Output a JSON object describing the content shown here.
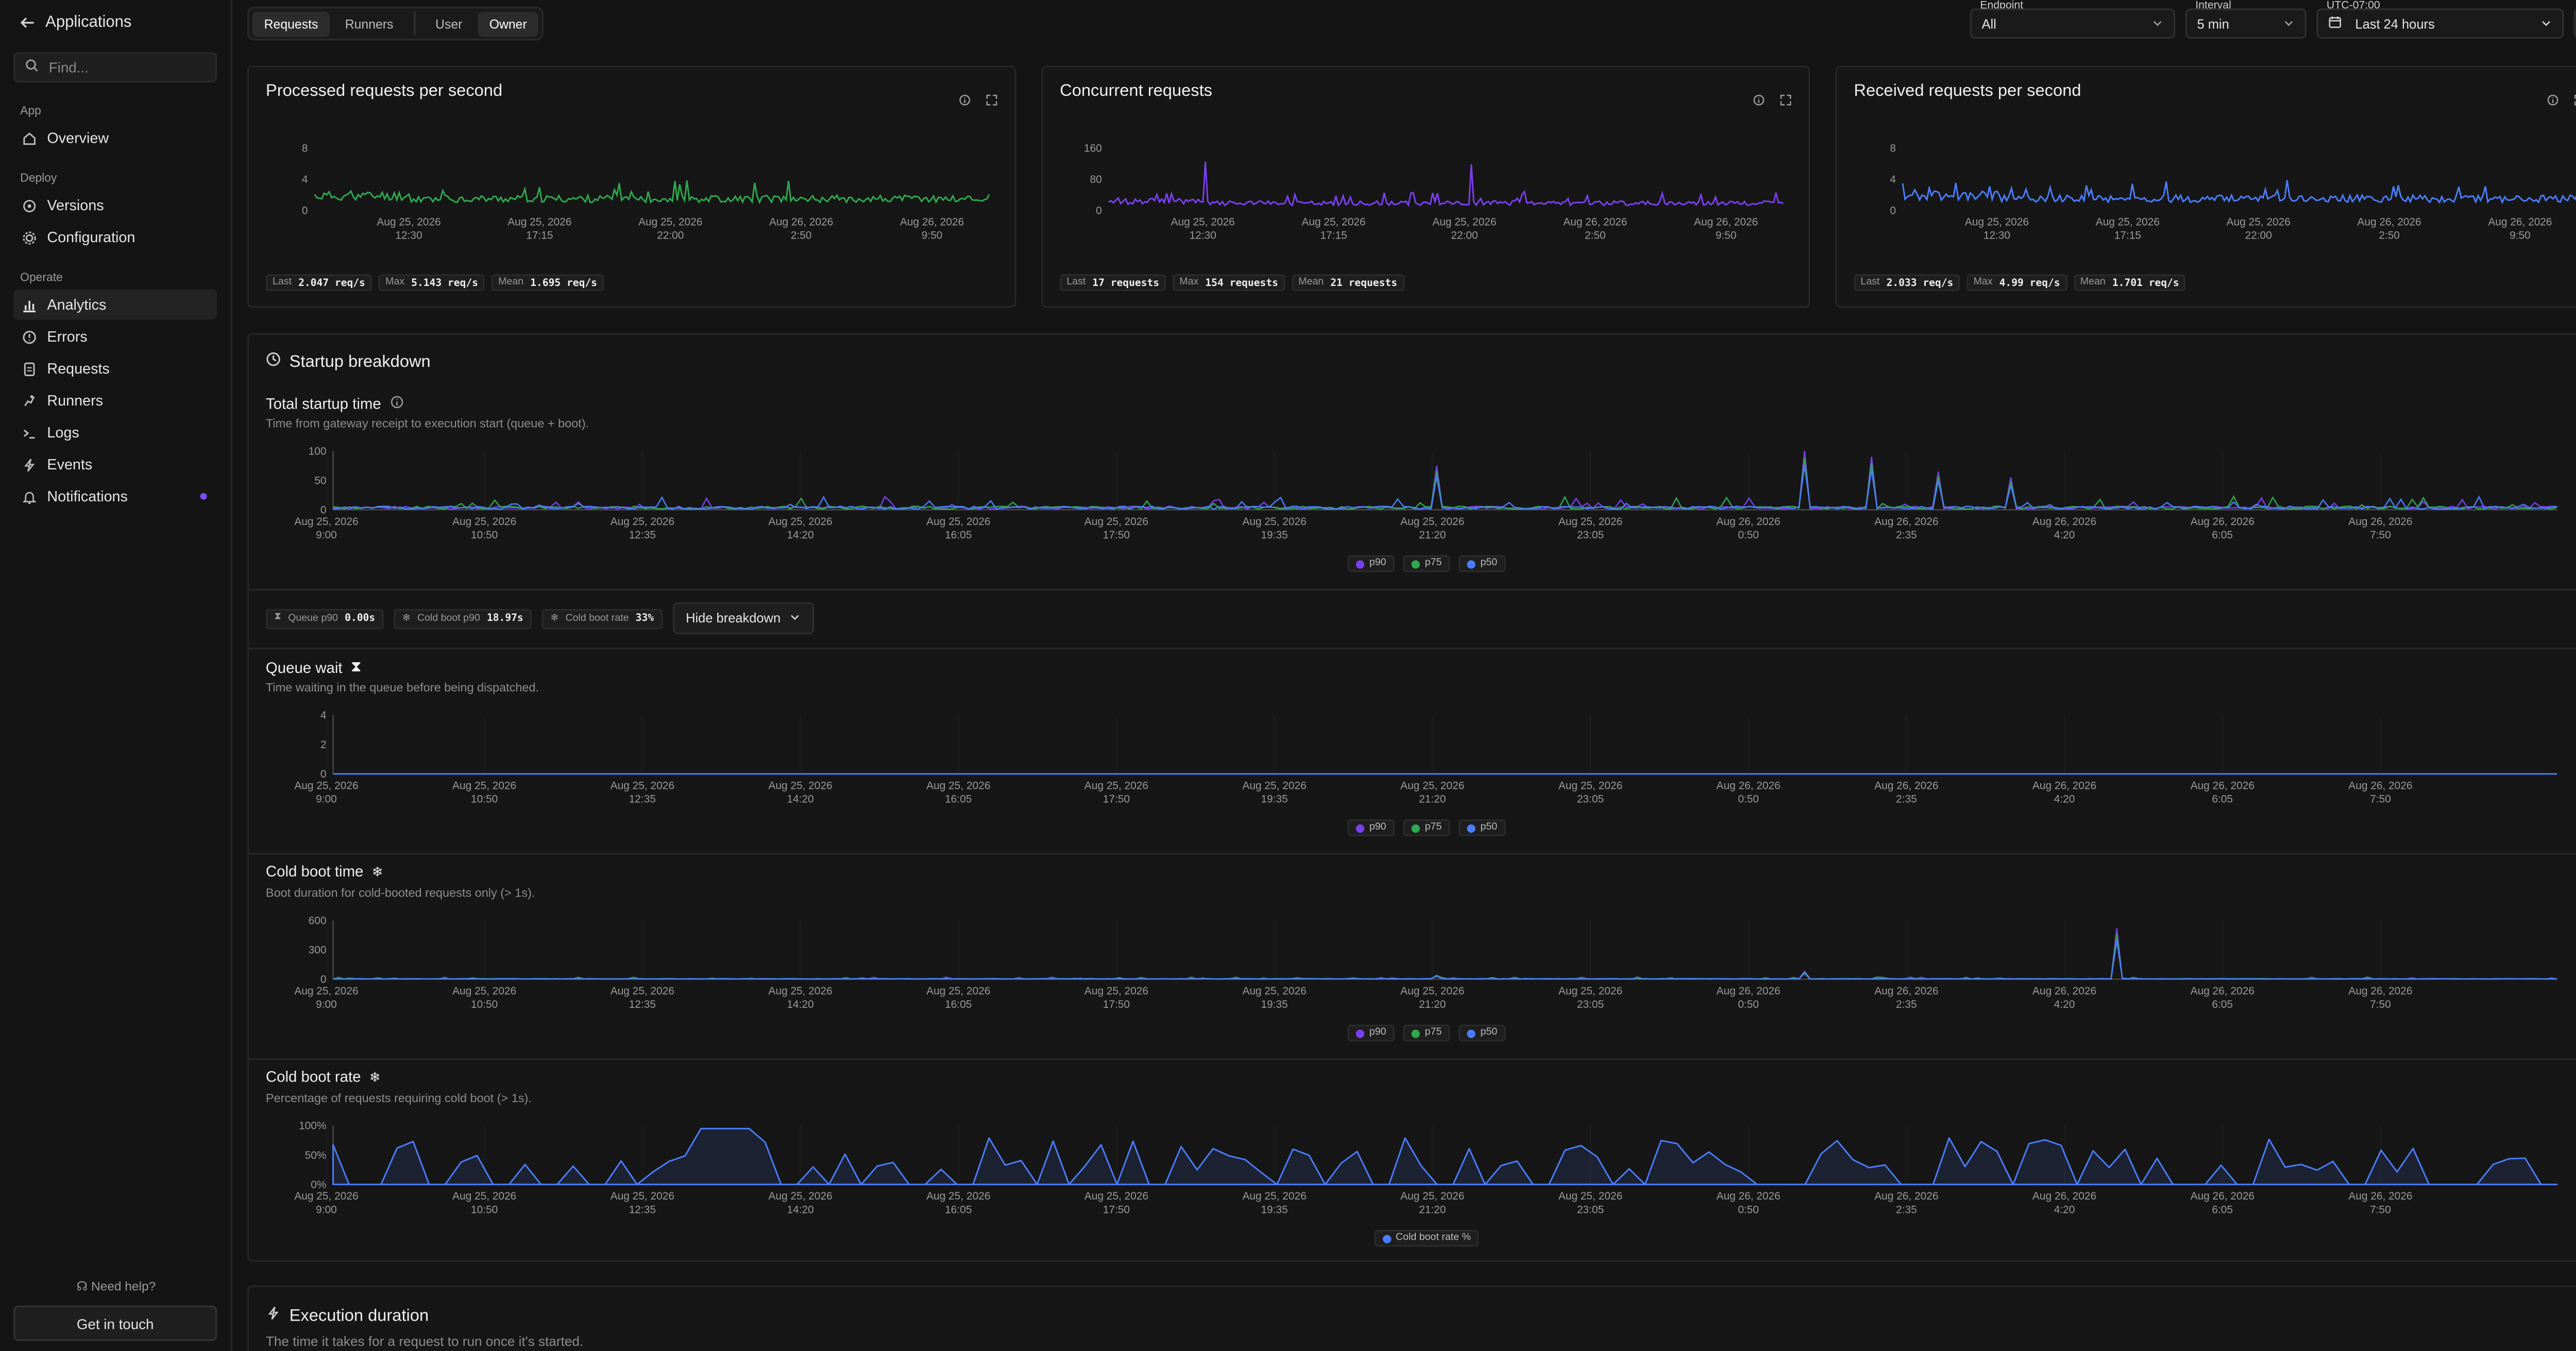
{
  "sidebar": {
    "back_label": "Applications",
    "search_placeholder": "Find...",
    "sections": {
      "app": "App",
      "deploy": "Deploy",
      "operate": "Operate"
    },
    "items": {
      "overview": "Overview",
      "versions": "Versions",
      "configuration": "Configuration",
      "analytics": "Analytics",
      "errors": "Errors",
      "requests": "Requests",
      "runners": "Runners",
      "logs": "Logs",
      "events": "Events",
      "notifications": "Notifications"
    },
    "help": "Need help?",
    "cta": "Get in touch"
  },
  "toolbar": {
    "tabs": [
      "Requests",
      "Runners"
    ],
    "scope_tabs": [
      "User",
      "Owner"
    ],
    "endpoint_label": "Endpoint",
    "endpoint_value": "All",
    "interval_label": "Interval",
    "interval_value": "5 min",
    "tz_label": "UTC-07:00",
    "range_value": "Last 24 hours"
  },
  "colors": {
    "purple": "#7b3ff2",
    "green": "#2fa84f",
    "blue": "#4a7dff",
    "accent_dot": "#7b4dff"
  },
  "top_cards": [
    {
      "title": "Processed requests per second",
      "stats": [
        {
          "k": "Last",
          "v": "2.047 req/s"
        },
        {
          "k": "Max",
          "v": "5.143 req/s"
        },
        {
          "k": "Mean",
          "v": "1.695 req/s"
        }
      ]
    },
    {
      "title": "Concurrent requests",
      "stats": [
        {
          "k": "Last",
          "v": "17 requests"
        },
        {
          "k": "Max",
          "v": "154 requests"
        },
        {
          "k": "Mean",
          "v": "21 requests"
        }
      ]
    },
    {
      "title": "Received requests per second",
      "stats": [
        {
          "k": "Last",
          "v": "2.033 req/s"
        },
        {
          "k": "Max",
          "v": "4.99 req/s"
        },
        {
          "k": "Mean",
          "v": "1.701 req/s"
        }
      ]
    }
  ],
  "startup": {
    "title": "Startup breakdown",
    "total_title": "Total startup time",
    "total_desc": "Time from gateway receipt to execution start (queue + boot).",
    "queue_title": "Queue wait",
    "queue_desc": "Time waiting in the queue before being dispatched.",
    "cold_title": "Cold boot time",
    "cold_desc": "Boot duration for cold-booted requests only (> 1s).",
    "rate_title": "Cold boot rate",
    "rate_desc": "Percentage of requests requiring cold boot (> 1s).",
    "breakdown_stats": [
      {
        "k": "Queue p90",
        "v": "0.00s"
      },
      {
        "k": "Cold boot p90",
        "v": "18.97s"
      },
      {
        "k": "Cold boot rate",
        "v": "33%"
      }
    ],
    "hide_label": "Hide breakdown",
    "legend": [
      "p90",
      "p75",
      "p50"
    ],
    "rate_legend": "Cold boot rate %"
  },
  "execution": {
    "title": "Execution duration",
    "desc": "The time it takes for a request to run once it's started."
  },
  "chart_data": [
    {
      "type": "line",
      "title": "Processed requests per second",
      "x_ticks": [
        [
          "Aug 25, 2026",
          "12:30"
        ],
        [
          "Aug 25, 2026",
          "17:15"
        ],
        [
          "Aug 25, 2026",
          "22:00"
        ],
        [
          "Aug 26, 2026",
          "2:50"
        ],
        [
          "Aug 26, 2026",
          "9:50"
        ]
      ],
      "y_ticks": [
        "8",
        "4",
        "0"
      ],
      "ylim": [
        0,
        8
      ],
      "series": [
        {
          "color": "#2fa84f",
          "shape": "noisy",
          "mean": 1.695,
          "max": 5.143,
          "last": 2.047
        }
      ]
    },
    {
      "type": "line",
      "title": "Concurrent requests",
      "x_ticks": [
        [
          "Aug 25, 2026",
          "12:30"
        ],
        [
          "Aug 25, 2026",
          "17:15"
        ],
        [
          "Aug 25, 2026",
          "22:00"
        ],
        [
          "Aug 26, 2026",
          "2:50"
        ],
        [
          "Aug 26, 2026",
          "9:50"
        ]
      ],
      "y_ticks": [
        "160",
        "80",
        "0"
      ],
      "ylim": [
        0,
        160
      ],
      "series": [
        {
          "color": "#7b3ff2",
          "shape": "noisy",
          "mean": 21,
          "max": 154,
          "last": 17
        }
      ]
    },
    {
      "type": "line",
      "title": "Received requests per second",
      "x_ticks": [
        [
          "Aug 25, 2026",
          "12:30"
        ],
        [
          "Aug 25, 2026",
          "17:15"
        ],
        [
          "Aug 25, 2026",
          "22:00"
        ],
        [
          "Aug 26, 2026",
          "2:50"
        ],
        [
          "Aug 26, 2026",
          "9:50"
        ]
      ],
      "y_ticks": [
        "8",
        "4",
        "0"
      ],
      "ylim": [
        0,
        8
      ],
      "series": [
        {
          "color": "#4a7dff",
          "shape": "noisy",
          "mean": 1.701,
          "max": 4.99,
          "last": 2.033
        }
      ]
    },
    {
      "type": "line",
      "title": "Total startup time",
      "x_ticks": [
        [
          "Aug 25, 2026",
          "9:00"
        ],
        [
          "Aug 25, 2026",
          "10:50"
        ],
        [
          "Aug 25, 2026",
          "12:35"
        ],
        [
          "Aug 25, 2026",
          "14:20"
        ],
        [
          "Aug 25, 2026",
          "16:05"
        ],
        [
          "Aug 25, 2026",
          "17:50"
        ],
        [
          "Aug 25, 2026",
          "19:35"
        ],
        [
          "Aug 25, 2026",
          "21:20"
        ],
        [
          "Aug 25, 2026",
          "23:05"
        ],
        [
          "Aug 26, 2026",
          "0:50"
        ],
        [
          "Aug 26, 2026",
          "2:35"
        ],
        [
          "Aug 26, 2026",
          "4:20"
        ],
        [
          "Aug 26, 2026",
          "6:05"
        ],
        [
          "Aug 26, 2026",
          "7:50"
        ]
      ],
      "y_ticks": [
        "100",
        "50",
        "0"
      ],
      "ylim": [
        0,
        100
      ],
      "series": [
        {
          "name": "p90",
          "color": "#7b3ff2"
        },
        {
          "name": "p75",
          "color": "#2fa84f"
        },
        {
          "name": "p50",
          "color": "#4a7dff"
        }
      ]
    },
    {
      "type": "line",
      "title": "Queue wait",
      "x_ticks": [
        [
          "Aug 25, 2026",
          "9:00"
        ],
        [
          "Aug 25, 2026",
          "10:50"
        ],
        [
          "Aug 25, 2026",
          "12:35"
        ],
        [
          "Aug 25, 2026",
          "14:20"
        ],
        [
          "Aug 25, 2026",
          "16:05"
        ],
        [
          "Aug 25, 2026",
          "17:50"
        ],
        [
          "Aug 25, 2026",
          "19:35"
        ],
        [
          "Aug 25, 2026",
          "21:20"
        ],
        [
          "Aug 25, 2026",
          "23:05"
        ],
        [
          "Aug 26, 2026",
          "0:50"
        ],
        [
          "Aug 26, 2026",
          "2:35"
        ],
        [
          "Aug 26, 2026",
          "4:20"
        ],
        [
          "Aug 26, 2026",
          "6:05"
        ],
        [
          "Aug 26, 2026",
          "7:50"
        ]
      ],
      "y_ticks": [
        "4",
        "2",
        "0"
      ],
      "ylim": [
        0,
        4
      ],
      "series": [
        {
          "name": "p90",
          "color": "#7b3ff2"
        },
        {
          "name": "p75",
          "color": "#2fa84f"
        },
        {
          "name": "p50",
          "color": "#4a7dff"
        }
      ]
    },
    {
      "type": "line",
      "title": "Cold boot time",
      "x_ticks": [
        [
          "Aug 25, 2026",
          "9:00"
        ],
        [
          "Aug 25, 2026",
          "10:50"
        ],
        [
          "Aug 25, 2026",
          "12:35"
        ],
        [
          "Aug 25, 2026",
          "14:20"
        ],
        [
          "Aug 25, 2026",
          "16:05"
        ],
        [
          "Aug 25, 2026",
          "17:50"
        ],
        [
          "Aug 25, 2026",
          "19:35"
        ],
        [
          "Aug 25, 2026",
          "21:20"
        ],
        [
          "Aug 25, 2026",
          "23:05"
        ],
        [
          "Aug 26, 2026",
          "0:50"
        ],
        [
          "Aug 26, 2026",
          "2:35"
        ],
        [
          "Aug 26, 2026",
          "4:20"
        ],
        [
          "Aug 26, 2026",
          "6:05"
        ],
        [
          "Aug 26, 2026",
          "7:50"
        ]
      ],
      "y_ticks": [
        "600",
        "300",
        "0"
      ],
      "ylim": [
        0,
        600
      ],
      "series": [
        {
          "name": "p90",
          "color": "#7b3ff2"
        },
        {
          "name": "p75",
          "color": "#2fa84f"
        },
        {
          "name": "p50",
          "color": "#4a7dff"
        }
      ]
    },
    {
      "type": "area",
      "title": "Cold boot rate",
      "x_ticks": [
        [
          "Aug 25, 2026",
          "9:00"
        ],
        [
          "Aug 25, 2026",
          "10:50"
        ],
        [
          "Aug 25, 2026",
          "12:35"
        ],
        [
          "Aug 25, 2026",
          "14:20"
        ],
        [
          "Aug 25, 2026",
          "16:05"
        ],
        [
          "Aug 25, 2026",
          "17:50"
        ],
        [
          "Aug 25, 2026",
          "19:35"
        ],
        [
          "Aug 25, 2026",
          "21:20"
        ],
        [
          "Aug 25, 2026",
          "23:05"
        ],
        [
          "Aug 26, 2026",
          "0:50"
        ],
        [
          "Aug 26, 2026",
          "2:35"
        ],
        [
          "Aug 26, 2026",
          "4:20"
        ],
        [
          "Aug 26, 2026",
          "6:05"
        ],
        [
          "Aug 26, 2026",
          "7:50"
        ]
      ],
      "y_ticks": [
        "100%",
        "50%",
        "0%"
      ],
      "ylim": [
        0,
        100
      ],
      "series": [
        {
          "name": "Cold boot rate %",
          "color": "#4a7dff"
        }
      ]
    }
  ]
}
